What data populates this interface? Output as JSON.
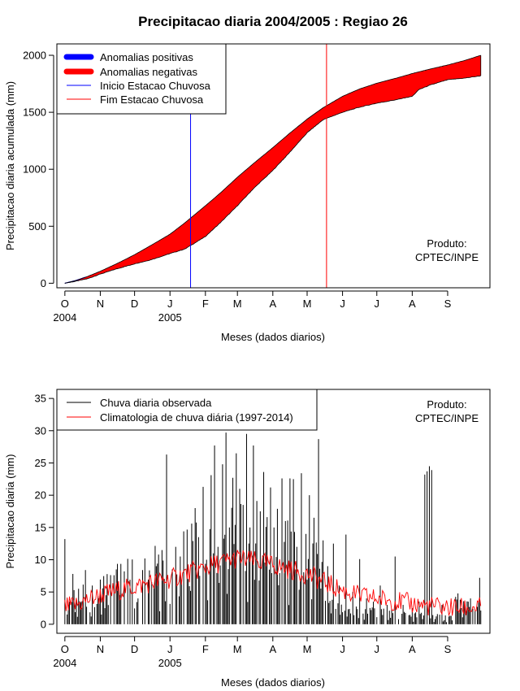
{
  "colors": {
    "positive": "#0000ff",
    "negative": "#ff0000",
    "onset_line": "#0000ff",
    "end_line": "#ff0000",
    "observed": "#000000",
    "climatology": "#ff0000"
  },
  "chart_data": [
    {
      "type": "area",
      "title": "Precipitacao diaria 2004/2005 : Regiao 26",
      "xlabel": "Meses (dados diarios)",
      "ylabel": "Precipitacao diaria acumulada (mm)",
      "ylim": [
        -40,
        2100
      ],
      "yticks": [
        0,
        500,
        1000,
        1500,
        2000
      ],
      "xlim_days": [
        -7,
        372
      ],
      "month_ticks": [
        {
          "label": "O",
          "day": 0
        },
        {
          "label": "N",
          "day": 31
        },
        {
          "label": "D",
          "day": 61
        },
        {
          "label": "J",
          "day": 92
        },
        {
          "label": "F",
          "day": 123
        },
        {
          "label": "M",
          "day": 151
        },
        {
          "label": "A",
          "day": 182
        },
        {
          "label": "M",
          "day": 212
        },
        {
          "label": "J",
          "day": 243
        },
        {
          "label": "J",
          "day": 273
        },
        {
          "label": "A",
          "day": 304
        },
        {
          "label": "S",
          "day": 335
        }
      ],
      "year_labels": [
        {
          "label": "2004",
          "day": 0
        },
        {
          "label": "2005",
          "day": 92
        }
      ],
      "legend": {
        "positive": "Anomalias positivas",
        "negative": "Anomalias negativas",
        "onset": "Inicio Estacao Chuvosa",
        "end": "Fim Estacao Chuvosa"
      },
      "annotation": [
        "Produto:",
        "CPTEC/INPE"
      ],
      "onset_day": 110,
      "end_day": 229,
      "climatology_cumulative": {
        "days": [
          0,
          10,
          20,
          31,
          45,
          61,
          75,
          92,
          105,
          123,
          137,
          151,
          165,
          182,
          196,
          212,
          226,
          243,
          258,
          273,
          290,
          304,
          320,
          335,
          350,
          364
        ],
        "values": [
          0,
          25,
          60,
          105,
          170,
          250,
          330,
          430,
          530,
          680,
          800,
          930,
          1050,
          1190,
          1310,
          1440,
          1540,
          1640,
          1705,
          1755,
          1800,
          1840,
          1880,
          1915,
          1955,
          2000
        ]
      },
      "observed_cumulative": {
        "days": [
          0,
          10,
          20,
          31,
          45,
          61,
          75,
          92,
          105,
          123,
          137,
          151,
          165,
          182,
          196,
          212,
          226,
          243,
          258,
          273,
          290,
          304,
          310,
          320,
          335,
          350,
          364
        ],
        "values": [
          0,
          18,
          40,
          80,
          125,
          170,
          205,
          260,
          300,
          410,
          540,
          680,
          830,
          990,
          1140,
          1320,
          1435,
          1500,
          1545,
          1580,
          1610,
          1640,
          1700,
          1740,
          1785,
          1800,
          1820
        ]
      }
    },
    {
      "type": "line",
      "xlabel": "Meses (dados diarios)",
      "ylabel": "Precipitacao diaria (mm)",
      "ylim": [
        -1.4,
        36.4
      ],
      "yticks": [
        0,
        5,
        10,
        15,
        20,
        25,
        30,
        35
      ],
      "xlim_days": [
        -7,
        372
      ],
      "legend": {
        "observed": "Chuva diaria observada",
        "climatology": "Climatologia de chuva diária (1997-2014)"
      },
      "annotation": [
        "Produto:",
        "CPTEC/INPE"
      ],
      "observed_peaks": [
        {
          "day": 0,
          "value": 13.2
        },
        {
          "day": 4,
          "value": 3.5
        },
        {
          "day": 7,
          "value": 7.8
        },
        {
          "day": 12,
          "value": 5.5
        },
        {
          "day": 18,
          "value": 8.4
        },
        {
          "day": 24,
          "value": 6.0
        },
        {
          "day": 30,
          "value": 4.0
        },
        {
          "day": 36,
          "value": 4.5
        },
        {
          "day": 43,
          "value": 7.6
        },
        {
          "day": 48,
          "value": 4.5
        },
        {
          "day": 52,
          "value": 8.2
        },
        {
          "day": 57,
          "value": 6.9
        },
        {
          "day": 64,
          "value": 4.0
        },
        {
          "day": 70,
          "value": 10.2
        },
        {
          "day": 76,
          "value": 6.5
        },
        {
          "day": 80,
          "value": 9.0
        },
        {
          "day": 85,
          "value": 11.5
        },
        {
          "day": 89,
          "value": 26.3
        },
        {
          "day": 94,
          "value": 8.5
        },
        {
          "day": 97,
          "value": 12.0
        },
        {
          "day": 101,
          "value": 10.5
        },
        {
          "day": 104,
          "value": 14.4
        },
        {
          "day": 108,
          "value": 7.0
        },
        {
          "day": 111,
          "value": 15.6
        },
        {
          "day": 114,
          "value": 18.0
        },
        {
          "day": 117,
          "value": 13.5
        },
        {
          "day": 121,
          "value": 21.3
        },
        {
          "day": 124,
          "value": 10.0
        },
        {
          "day": 128,
          "value": 23.1
        },
        {
          "day": 131,
          "value": 27.7
        },
        {
          "day": 134,
          "value": 12.0
        },
        {
          "day": 138,
          "value": 24.8
        },
        {
          "day": 141,
          "value": 29.7
        },
        {
          "day": 144,
          "value": 15.0
        },
        {
          "day": 147,
          "value": 22.7
        },
        {
          "day": 150,
          "value": 26.5
        },
        {
          "day": 153,
          "value": 21.0
        },
        {
          "day": 156,
          "value": 18.5
        },
        {
          "day": 159,
          "value": 29.5
        },
        {
          "day": 162,
          "value": 15.0
        },
        {
          "day": 165,
          "value": 27.7
        },
        {
          "day": 168,
          "value": 19.1
        },
        {
          "day": 171,
          "value": 17.5
        },
        {
          "day": 174,
          "value": 23.6
        },
        {
          "day": 177,
          "value": 16.6
        },
        {
          "day": 180,
          "value": 21.2
        },
        {
          "day": 183,
          "value": 15.0
        },
        {
          "day": 186,
          "value": 17.9
        },
        {
          "day": 190,
          "value": 22.6
        },
        {
          "day": 193,
          "value": 16.0
        },
        {
          "day": 197,
          "value": 22.6
        },
        {
          "day": 200,
          "value": 22.5
        },
        {
          "day": 203,
          "value": 12.0
        },
        {
          "day": 207,
          "value": 23.4
        },
        {
          "day": 211,
          "value": 14.0
        },
        {
          "day": 214,
          "value": 20.0
        },
        {
          "day": 218,
          "value": 16.5
        },
        {
          "day": 222,
          "value": 28.7
        },
        {
          "day": 226,
          "value": 13.0
        },
        {
          "day": 230,
          "value": 9.0
        },
        {
          "day": 235,
          "value": 12.5
        },
        {
          "day": 240,
          "value": 6.0
        },
        {
          "day": 246,
          "value": 13.9
        },
        {
          "day": 252,
          "value": 5.0
        },
        {
          "day": 258,
          "value": 10.1
        },
        {
          "day": 264,
          "value": 4.0
        },
        {
          "day": 270,
          "value": 3.5
        },
        {
          "day": 276,
          "value": 6.0
        },
        {
          "day": 282,
          "value": 3.0
        },
        {
          "day": 289,
          "value": 10.5
        },
        {
          "day": 296,
          "value": 3.0
        },
        {
          "day": 304,
          "value": 2.5
        },
        {
          "day": 310,
          "value": 3.5
        },
        {
          "day": 315,
          "value": 23.2
        },
        {
          "day": 317,
          "value": 23.7
        },
        {
          "day": 319,
          "value": 24.5
        },
        {
          "day": 321,
          "value": 23.9
        },
        {
          "day": 330,
          "value": 3.0
        },
        {
          "day": 345,
          "value": 2.0
        },
        {
          "day": 355,
          "value": 4.0
        },
        {
          "day": 363,
          "value": 7.2
        }
      ],
      "climatology_daily": {
        "days": [
          0,
          10,
          20,
          31,
          45,
          61,
          75,
          92,
          105,
          123,
          137,
          151,
          165,
          182,
          196,
          212,
          226,
          243,
          258,
          273,
          290,
          304,
          320,
          335,
          350,
          364
        ],
        "values": [
          2.6,
          3.0,
          3.8,
          4.5,
          5.2,
          5.8,
          6.4,
          7.0,
          7.8,
          8.8,
          9.6,
          10.2,
          9.8,
          9.2,
          8.5,
          7.8,
          6.6,
          5.2,
          4.4,
          4.0,
          3.6,
          3.2,
          2.8,
          2.6,
          2.5,
          2.6
        ]
      }
    }
  ]
}
